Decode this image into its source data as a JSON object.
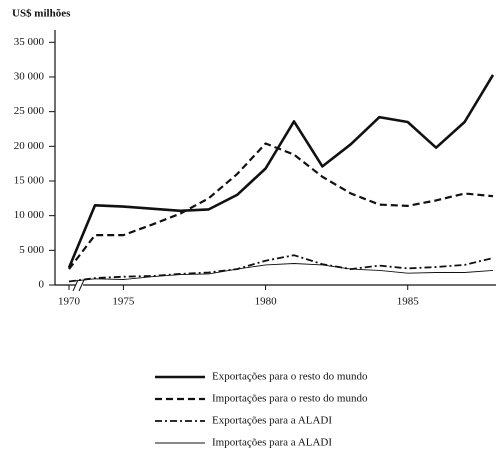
{
  "chart_data": {
    "type": "line",
    "y_label": "US$ milhões",
    "x": [
      1970,
      1974,
      1975,
      1976,
      1977,
      1978,
      1979,
      1980,
      1981,
      1982,
      1983,
      1984,
      1985,
      1986,
      1987,
      1988
    ],
    "xlim": [
      1970,
      1988
    ],
    "xticks": [
      1970,
      1975,
      1980,
      1985
    ],
    "x_break": 1974,
    "ylim": [
      0,
      35000
    ],
    "yticks": [
      0,
      {
        "value": 5000,
        "label": "5 000"
      },
      {
        "value": 10000,
        "label": "10 000"
      },
      {
        "value": 15000,
        "label": "15 000"
      },
      {
        "value": 20000,
        "label": "20 000"
      },
      {
        "value": 25000,
        "label": "25 000"
      },
      {
        "value": 30000,
        "label": "30 000"
      },
      {
        "value": 35000,
        "label": "35 000"
      }
    ],
    "grid": false,
    "legend": "bottom",
    "series": [
      {
        "name": "Exportações para o resto do mundo",
        "color": "#111111",
        "style": "solid",
        "values": [
          2500,
          11500,
          11300,
          11000,
          10700,
          10900,
          13000,
          16800,
          23600,
          17100,
          20300,
          24200,
          23500,
          19800,
          23500,
          30300
        ]
      },
      {
        "name": "Importações para o resto do mundo",
        "color": "#111111",
        "style": "dashed",
        "values": [
          2300,
          7200,
          7200,
          8700,
          10300,
          12500,
          16000,
          20400,
          18800,
          15600,
          13200,
          11600,
          11400,
          12200,
          13200,
          12800
        ]
      },
      {
        "name": "Exportações para a ALADI",
        "color": "#111111",
        "style": "dashdot",
        "values": [
          500,
          1000,
          1200,
          1300,
          1600,
          1800,
          2300,
          3500,
          4300,
          3000,
          2300,
          2800,
          2400,
          2600,
          2900,
          3900
        ]
      },
      {
        "name": "Importações para a ALADI",
        "color": "#111111",
        "style": "thin",
        "values": [
          500,
          900,
          800,
          1200,
          1500,
          1600,
          2300,
          2900,
          3100,
          2900,
          2300,
          2100,
          1700,
          1800,
          1800,
          2100
        ]
      }
    ]
  }
}
